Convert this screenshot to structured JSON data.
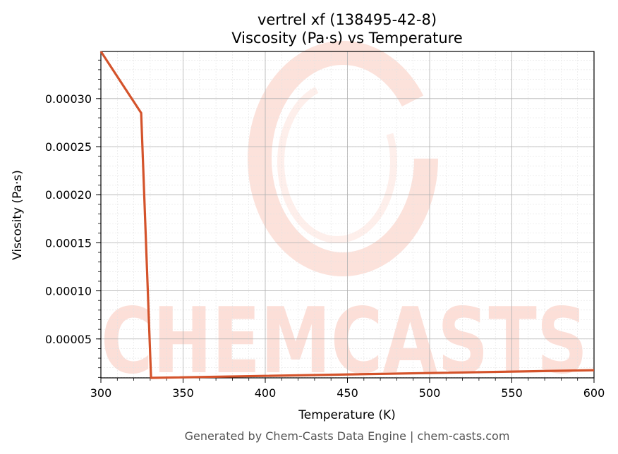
{
  "chart_data": {
    "type": "line",
    "title": "vertrel xf (138495-42-8)",
    "subtitle": "Viscosity (Pa·s) vs Temperature",
    "xlabel": "Temperature (K)",
    "ylabel": "Viscosity (Pa·s)",
    "xlim": [
      300,
      600
    ],
    "ylim": [
      9.5e-06,
      0.000349
    ],
    "xticks": [
      300,
      350,
      400,
      450,
      500,
      550,
      600
    ],
    "xtick_labels": [
      "300",
      "350",
      "400",
      "450",
      "500",
      "550",
      "600"
    ],
    "yticks": [
      5e-05,
      0.0001,
      0.00015,
      0.0002,
      0.00025,
      0.0003
    ],
    "ytick_labels": [
      "0.00005",
      "0.00010",
      "0.00015",
      "0.00020",
      "0.00025",
      "0.00030"
    ],
    "grid": true,
    "minor_grid": true,
    "series": [
      {
        "color": "#d4532b",
        "x": [
          300,
          324.5,
          330.5,
          600
        ],
        "y": [
          0.000349,
          0.000285,
          9.5e-06,
          1.75e-05
        ]
      }
    ]
  },
  "watermark": "CHEMCASTS",
  "footer": "Generated by Chem-Casts Data Engine | chem-casts.com"
}
